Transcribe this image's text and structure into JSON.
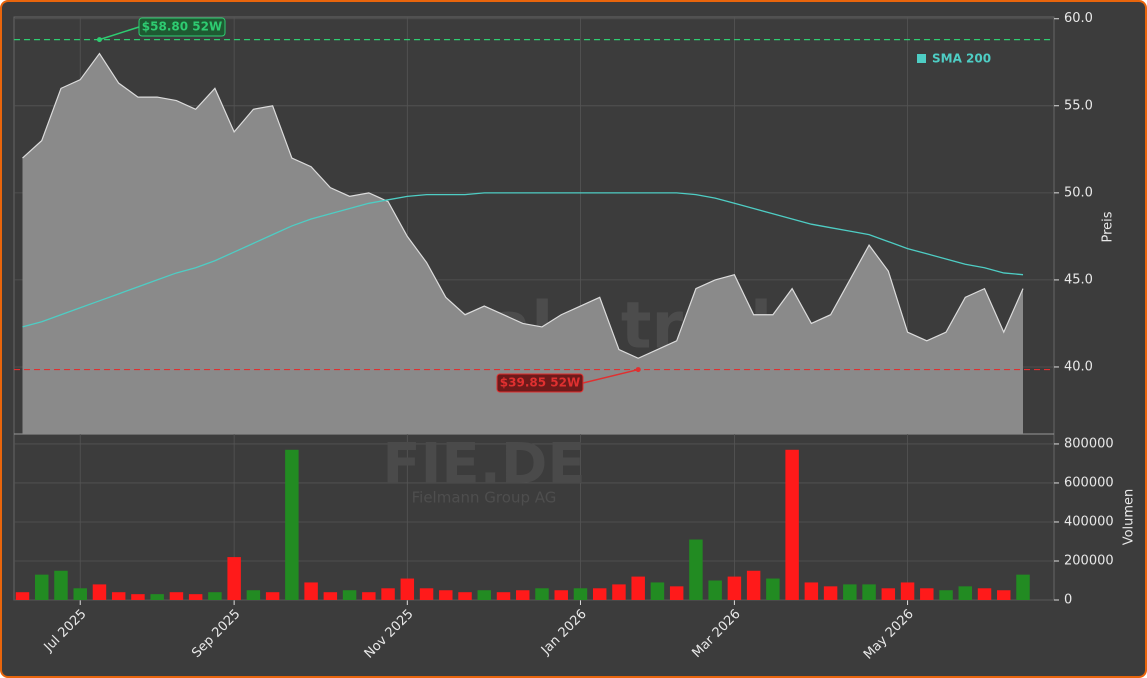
{
  "chart_data": {
    "type": "area",
    "watermark": "forexsignale.trade",
    "symbol": "FIE.DE",
    "company": "Fielmann Group AG",
    "categories": [
      null,
      null,
      null,
      "Jul 2025",
      null,
      null,
      null,
      null,
      null,
      null,
      null,
      "Sep 2025",
      null,
      null,
      null,
      null,
      null,
      null,
      null,
      null,
      "Nov 2025",
      null,
      null,
      null,
      null,
      null,
      null,
      null,
      null,
      "Jan 2026",
      null,
      null,
      null,
      null,
      null,
      null,
      null,
      "Mar 2026",
      null,
      null,
      null,
      null,
      null,
      null,
      null,
      null,
      "May 2026",
      null,
      null,
      null,
      null,
      null,
      null
    ],
    "ylabel": "Preis",
    "ylim": [
      36.15,
      60.1
    ],
    "yticks": [
      {
        "value": 40,
        "label": "40.0"
      },
      {
        "value": 45,
        "label": "45.0"
      },
      {
        "value": 50,
        "label": "50.0"
      },
      {
        "value": 55,
        "label": "55.0"
      },
      {
        "value": 60,
        "label": "60.0"
      }
    ],
    "grid": true,
    "legend": "upper right",
    "series": [
      {
        "kind": "area",
        "color": "#8a8a8a",
        "values": [
          52.0,
          53.0,
          56.0,
          56.5,
          58.0,
          56.3,
          55.5,
          55.5,
          55.3,
          54.8,
          56.0,
          53.5,
          54.8,
          55.0,
          52.0,
          51.5,
          50.3,
          49.8,
          50.0,
          49.5,
          47.5,
          46.0,
          44.0,
          43.0,
          43.5,
          43.0,
          42.5,
          42.3,
          43.0,
          43.5,
          44.0,
          41.0,
          40.5,
          41.0,
          41.5,
          44.5,
          45.0,
          45.3,
          43.0,
          43.0,
          44.5,
          42.5,
          43.0,
          45.0,
          47.0,
          45.5,
          42.0,
          41.5,
          42.0,
          44.0,
          44.5,
          42.0,
          44.5
        ]
      },
      {
        "kind": "line",
        "name": "SMA 200",
        "color": "#4ecdc4",
        "values": [
          42.3,
          42.6,
          43.0,
          43.4,
          43.8,
          44.2,
          44.6,
          45.0,
          45.4,
          45.7,
          46.1,
          46.6,
          47.1,
          47.6,
          48.1,
          48.5,
          48.8,
          49.1,
          49.4,
          49.6,
          49.8,
          49.9,
          49.9,
          49.9,
          50.0,
          50.0,
          50.0,
          50.0,
          50.0,
          50.0,
          50.0,
          50.0,
          50.0,
          50.0,
          50.0,
          49.9,
          49.7,
          49.4,
          49.1,
          48.8,
          48.5,
          48.2,
          48.0,
          47.8,
          47.6,
          47.2,
          46.8,
          46.5,
          46.2,
          45.9,
          45.7,
          45.4,
          45.3
        ]
      }
    ],
    "annotations": [
      {
        "text": "$58.80 52W",
        "value": 58.8,
        "color": "#2ecc71",
        "fill": "#1e5a32"
      },
      {
        "text": "$39.85 52W",
        "value": 39.85,
        "color": "#e03030",
        "fill": "#6e1a1a"
      }
    ],
    "volume": {
      "ylabel": "Volumen",
      "ylim": [
        0,
        851000
      ],
      "yticks": [
        0,
        200000,
        400000,
        600000,
        800000
      ],
      "values": [
        40000,
        130000,
        150000,
        60000,
        80000,
        40000,
        30000,
        30000,
        40000,
        30000,
        40000,
        220000,
        50000,
        40000,
        770000,
        90000,
        40000,
        50000,
        40000,
        60000,
        110000,
        60000,
        50000,
        40000,
        50000,
        40000,
        50000,
        60000,
        50000,
        60000,
        60000,
        80000,
        120000,
        90000,
        70000,
        310000,
        100000,
        120000,
        150000,
        110000,
        770000,
        90000,
        70000,
        80000,
        80000,
        60000,
        90000,
        60000,
        50000,
        70000,
        60000,
        50000,
        130000
      ],
      "colors": [
        "#ff1a1a",
        "#228b22",
        "#228b22",
        "#228b22",
        "#ff1a1a",
        "#ff1a1a",
        "#ff1a1a",
        "#228b22",
        "#ff1a1a",
        "#ff1a1a",
        "#228b22",
        "#ff1a1a",
        "#228b22",
        "#ff1a1a",
        "#228b22",
        "#ff1a1a",
        "#ff1a1a",
        "#228b22",
        "#ff1a1a",
        "#ff1a1a",
        "#ff1a1a",
        "#ff1a1a",
        "#ff1a1a",
        "#ff1a1a",
        "#228b22",
        "#ff1a1a",
        "#ff1a1a",
        "#228b22",
        "#ff1a1a",
        "#228b22",
        "#ff1a1a",
        "#ff1a1a",
        "#ff1a1a",
        "#228b22",
        "#ff1a1a",
        "#228b22",
        "#228b22",
        "#ff1a1a",
        "#ff1a1a",
        "#228b22",
        "#ff1a1a",
        "#ff1a1a",
        "#ff1a1a",
        "#228b22",
        "#228b22",
        "#ff1a1a",
        "#ff1a1a",
        "#ff1a1a",
        "#228b22",
        "#228b22",
        "#ff1a1a",
        "#ff1a1a",
        "#228b22"
      ]
    }
  }
}
